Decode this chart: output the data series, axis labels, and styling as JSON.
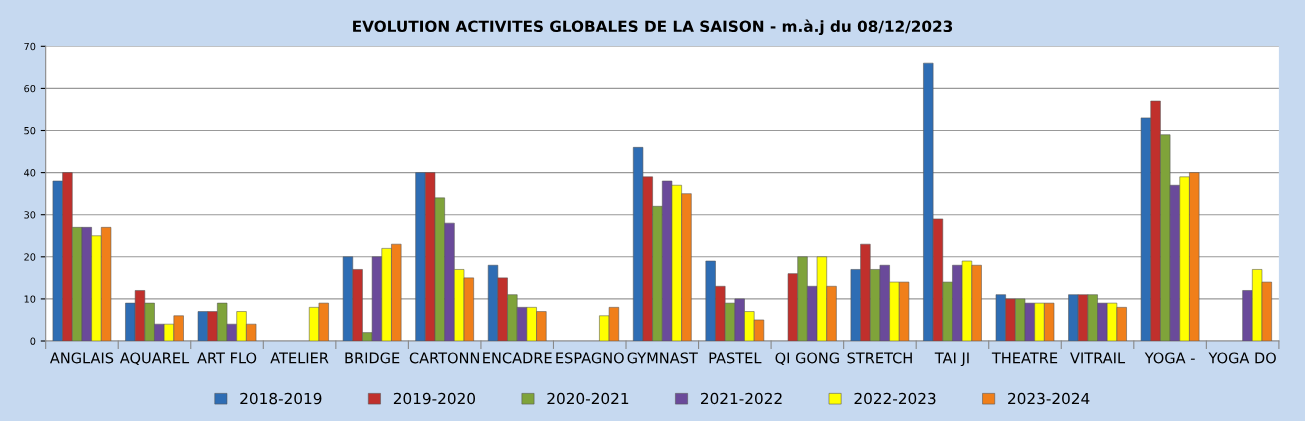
{
  "chart_data": {
    "type": "bar",
    "title": "EVOLUTION ACTIVITES GLOBALES DE LA SAISON - m.à.j du 08/12/2023",
    "categories": [
      "ANGLAIS",
      "AQUAREL",
      "ART FLO",
      "ATELIER",
      "BRIDGE",
      "CARTONN",
      "ENCADRE",
      "ESPAGNO",
      "GYMNAST",
      "PASTEL",
      "QI GONG",
      "STRETCH",
      "TAI JI",
      "THEATRE",
      "VITRAIL",
      "YOGA -",
      "YOGA DO"
    ],
    "series": [
      {
        "name": "2018-2019",
        "color": "#2e6db4",
        "values": [
          38,
          9,
          7,
          null,
          20,
          40,
          18,
          null,
          46,
          19,
          null,
          17,
          66,
          11,
          11,
          53,
          null
        ]
      },
      {
        "name": "2019-2020",
        "color": "#c0302c",
        "values": [
          40,
          12,
          7,
          null,
          17,
          40,
          15,
          null,
          39,
          13,
          16,
          23,
          29,
          10,
          11,
          57,
          null
        ]
      },
      {
        "name": "2020-2021",
        "color": "#7fa33a",
        "values": [
          27,
          9,
          9,
          null,
          2,
          34,
          11,
          null,
          32,
          9,
          20,
          17,
          14,
          10,
          11,
          49,
          null
        ]
      },
      {
        "name": "2021-2022",
        "color": "#6a4a9a",
        "values": [
          27,
          4,
          4,
          null,
          20,
          28,
          8,
          null,
          38,
          10,
          13,
          18,
          18,
          9,
          9,
          37,
          12
        ]
      },
      {
        "name": "2022-2023",
        "color": "#ffff00",
        "values": [
          25,
          4,
          7,
          8,
          22,
          17,
          8,
          6,
          37,
          7,
          20,
          14,
          19,
          9,
          9,
          39,
          17
        ]
      },
      {
        "name": "2023-2024",
        "color": "#f07f1a",
        "values": [
          27,
          6,
          4,
          9,
          23,
          15,
          7,
          8,
          35,
          5,
          13,
          14,
          18,
          9,
          8,
          40,
          14
        ]
      }
    ],
    "ylim": [
      0,
      70
    ],
    "yticks": [
      0,
      10,
      20,
      30,
      40,
      50,
      60,
      70
    ],
    "grid": "y",
    "legend": "bottom"
  }
}
